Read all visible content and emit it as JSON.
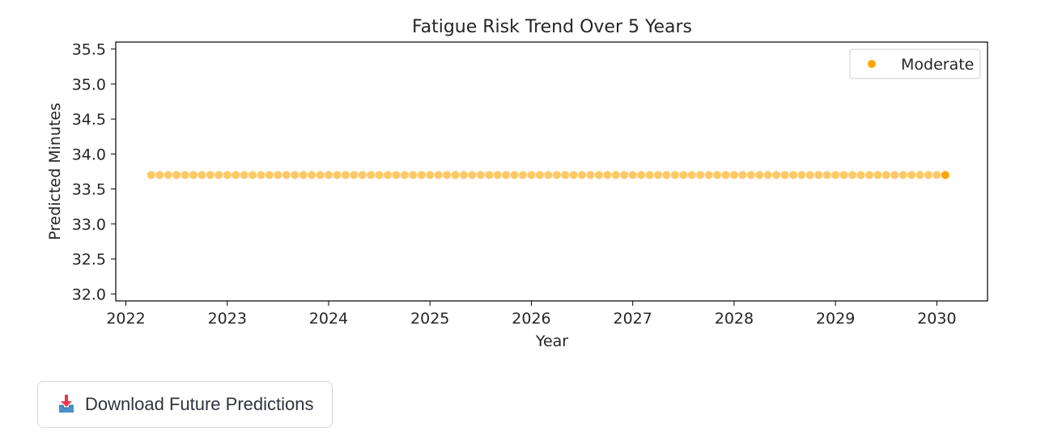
{
  "chart_data": {
    "type": "scatter",
    "title": "Fatigue Risk Trend Over 5 Years",
    "xlabel": "Year",
    "ylabel": "Predicted Minutes",
    "x_ticks": [
      "2022",
      "2023",
      "2024",
      "2025",
      "2026",
      "2027",
      "2028",
      "2029",
      "2030"
    ],
    "y_ticks": [
      "32.0",
      "32.5",
      "33.0",
      "33.5",
      "34.0",
      "34.5",
      "35.0",
      "35.5"
    ],
    "xlim": [
      2021.9,
      2030.5
    ],
    "ylim": [
      31.9,
      35.6
    ],
    "grid": false,
    "legend_position": "top-right",
    "series": [
      {
        "name": "Moderate",
        "color": "#FFA500",
        "x_start": "2022-04",
        "x_end": "2030-02",
        "frequency": "monthly",
        "y_constant": 33.7
      }
    ]
  },
  "download_button": {
    "label": "Download Future Predictions",
    "icon": "inbox-tray-icon"
  }
}
